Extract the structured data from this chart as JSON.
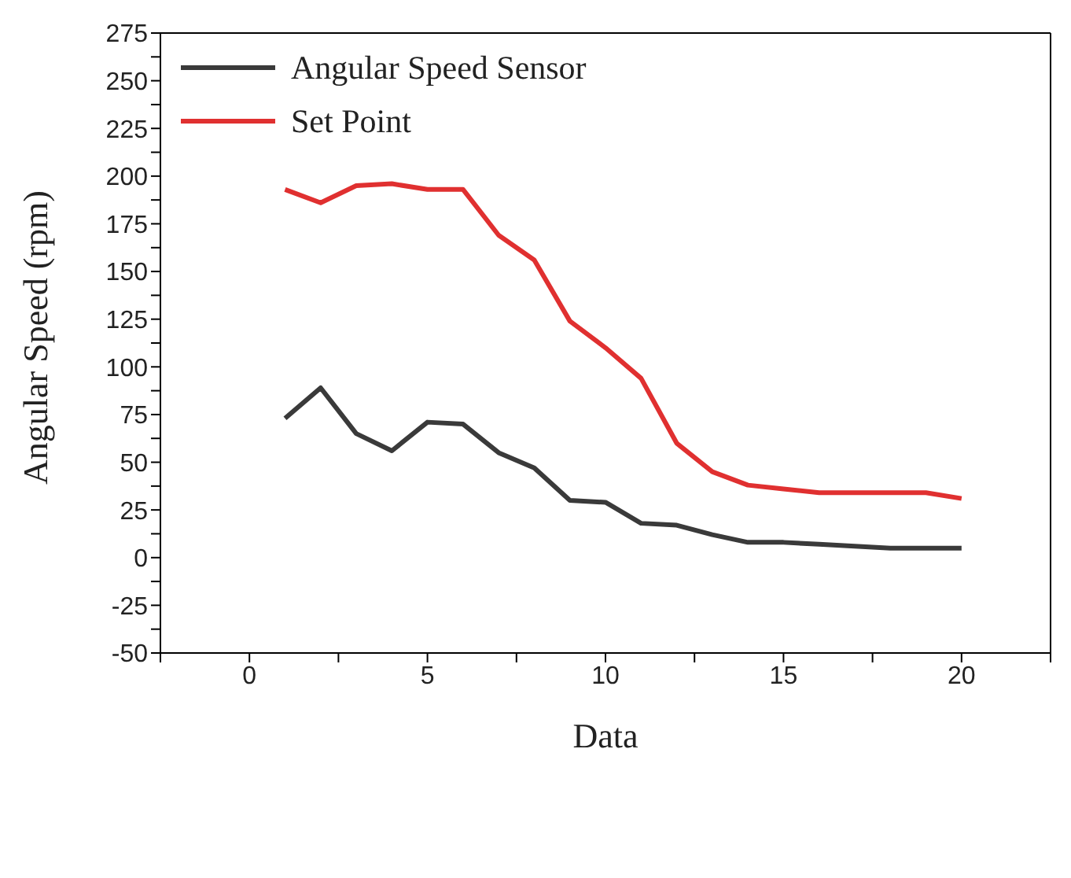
{
  "chart_data": {
    "type": "line",
    "xlabel": "Data",
    "ylabel": "Angular Speed (rpm)",
    "x": [
      1,
      2,
      3,
      4,
      5,
      6,
      7,
      8,
      9,
      10,
      11,
      12,
      13,
      14,
      15,
      16,
      17,
      18,
      19,
      20
    ],
    "series": [
      {
        "name": "Angular Speed Sensor",
        "color": "#3a3a3a",
        "values": [
          73,
          89,
          65,
          56,
          71,
          70,
          55,
          47,
          30,
          29,
          18,
          17,
          12,
          8,
          8,
          7,
          6,
          5,
          5,
          5
        ]
      },
      {
        "name": "Set Point",
        "color": "#e03030",
        "values": [
          193,
          186,
          195,
          196,
          193,
          193,
          169,
          156,
          124,
          110,
          94,
          60,
          45,
          38,
          36,
          34,
          34,
          34,
          34,
          31
        ]
      }
    ],
    "xlim": [
      -2.5,
      22.5
    ],
    "xticks": [
      {
        "value": -2.5,
        "label": null
      },
      0,
      {
        "value": 2.5,
        "label": null
      },
      5,
      {
        "value": 7.5,
        "label": null
      },
      10,
      {
        "value": 12.5,
        "label": null
      },
      15,
      {
        "value": 17.5,
        "label": null
      },
      20,
      {
        "value": 22.5,
        "label": null
      }
    ],
    "ylim": [
      -50,
      275
    ],
    "yticks": [
      -50,
      {
        "value": -37.5,
        "label": null
      },
      -25,
      {
        "value": -12.5,
        "label": null
      },
      0,
      {
        "value": 12.5,
        "label": null
      },
      25,
      {
        "value": 37.5,
        "label": null
      },
      50,
      {
        "value": 62.5,
        "label": null
      },
      75,
      {
        "value": 87.5,
        "label": null
      },
      100,
      {
        "value": 112.5,
        "label": null
      },
      125,
      {
        "value": 137.5,
        "label": null
      },
      150,
      {
        "value": 162.5,
        "label": null
      },
      175,
      {
        "value": 187.5,
        "label": null
      },
      200,
      {
        "value": 212.5,
        "label": null
      },
      225,
      {
        "value": 237.5,
        "label": null
      },
      250,
      {
        "value": 262.5,
        "label": null
      },
      275
    ],
    "legend": "top left",
    "marker": "none",
    "line_style": "solid",
    "grid": false
  }
}
